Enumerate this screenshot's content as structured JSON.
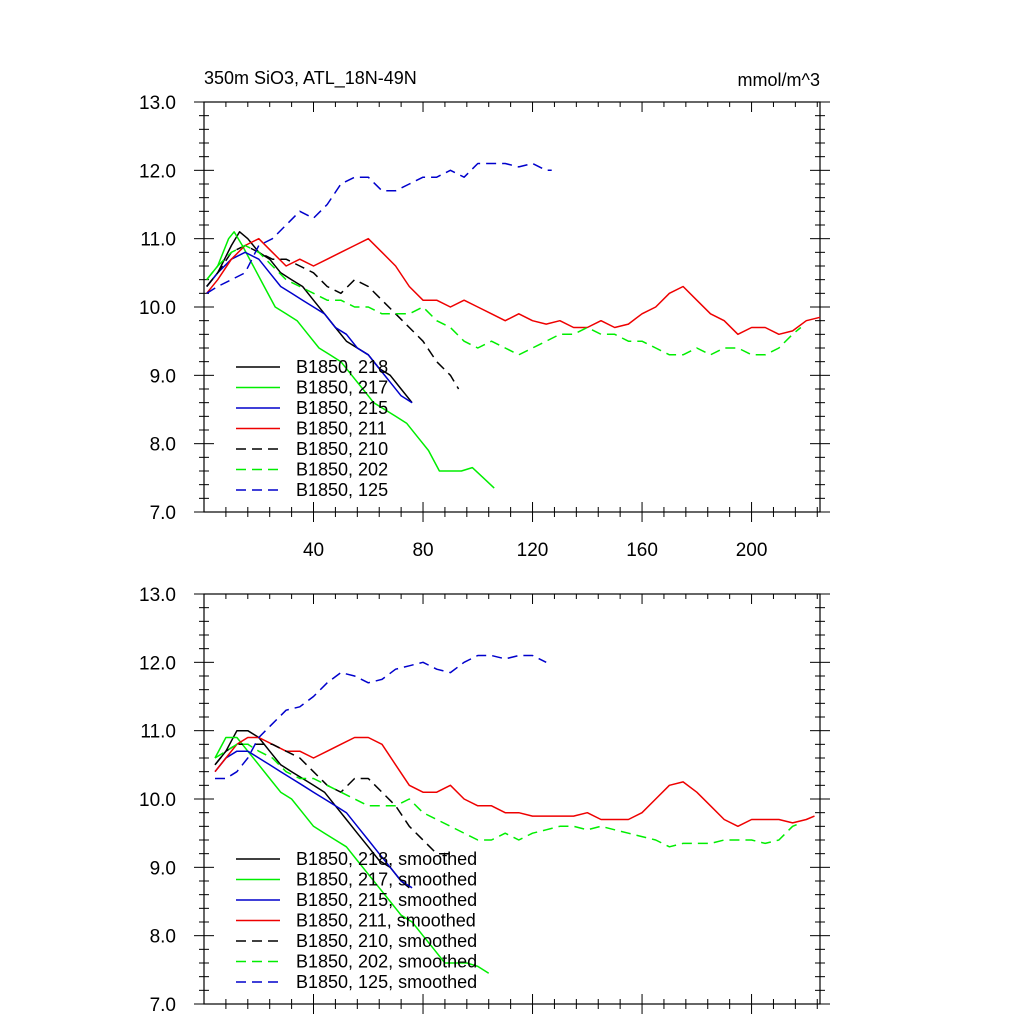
{
  "chart_data": [
    {
      "type": "line",
      "title": "350m SiO3, ATL_18N-49N",
      "units": "mmol/m^3",
      "xlim": [
        0,
        225
      ],
      "ylim": [
        7.0,
        13.0
      ],
      "xticks": [
        "40",
        "80",
        "120",
        "160",
        "200"
      ],
      "yticks": [
        "7.0",
        "8.0",
        "9.0",
        "10.0",
        "11.0",
        "12.0",
        "13.0"
      ],
      "legend_position": "bottom-left",
      "series": [
        {
          "name": "B1850, 218",
          "color": "#000000",
          "dash": "solid",
          "x": [
            1,
            5,
            10,
            13,
            16,
            20,
            24,
            28,
            32,
            36,
            40,
            44,
            48,
            52,
            56,
            60,
            64,
            68,
            72,
            76
          ],
          "y": [
            10.3,
            10.5,
            10.9,
            11.1,
            11.0,
            10.8,
            10.7,
            10.5,
            10.4,
            10.3,
            10.1,
            9.9,
            9.7,
            9.5,
            9.4,
            9.3,
            9.1,
            9.0,
            8.8,
            8.6
          ]
        },
        {
          "name": "B1850, 217",
          "color": "#00ee00",
          "dash": "solid",
          "x": [
            1,
            5,
            9,
            11,
            14,
            18,
            22,
            26,
            30,
            34,
            38,
            42,
            46,
            50,
            54,
            58,
            62,
            66,
            70,
            74,
            78,
            82,
            86,
            90,
            94,
            98,
            102,
            106
          ],
          "y": [
            10.4,
            10.6,
            11.0,
            11.1,
            10.9,
            10.6,
            10.3,
            10.0,
            9.9,
            9.8,
            9.6,
            9.4,
            9.3,
            9.2,
            9.0,
            8.8,
            8.6,
            8.5,
            8.4,
            8.3,
            8.1,
            7.9,
            7.6,
            7.6,
            7.6,
            7.65,
            7.5,
            7.35
          ]
        },
        {
          "name": "B1850, 215",
          "color": "#0000cc",
          "dash": "solid",
          "x": [
            1,
            5,
            10,
            15,
            20,
            24,
            28,
            32,
            36,
            40,
            44,
            48,
            52,
            56,
            60,
            64,
            68,
            72,
            76
          ],
          "y": [
            10.3,
            10.5,
            10.7,
            10.8,
            10.7,
            10.5,
            10.3,
            10.2,
            10.1,
            10.0,
            9.9,
            9.7,
            9.6,
            9.4,
            9.3,
            9.1,
            8.9,
            8.7,
            8.6
          ]
        },
        {
          "name": "B1850, 211",
          "color": "#ee0000",
          "dash": "solid",
          "x": [
            1,
            5,
            10,
            15,
            20,
            25,
            30,
            35,
            40,
            45,
            50,
            55,
            60,
            65,
            70,
            75,
            80,
            85,
            90,
            95,
            100,
            105,
            110,
            115,
            120,
            125,
            130,
            135,
            140,
            145,
            150,
            155,
            160,
            165,
            170,
            175,
            180,
            185,
            190,
            195,
            200,
            205,
            210,
            215,
            220,
            225
          ],
          "y": [
            10.2,
            10.4,
            10.7,
            10.9,
            11.0,
            10.8,
            10.6,
            10.7,
            10.6,
            10.7,
            10.8,
            10.9,
            11.0,
            10.8,
            10.6,
            10.3,
            10.1,
            10.1,
            10.0,
            10.1,
            10.0,
            9.9,
            9.8,
            9.9,
            9.8,
            9.75,
            9.8,
            9.7,
            9.7,
            9.8,
            9.7,
            9.75,
            9.9,
            10.0,
            10.2,
            10.3,
            10.1,
            9.9,
            9.8,
            9.6,
            9.7,
            9.7,
            9.6,
            9.65,
            9.8,
            9.85
          ]
        },
        {
          "name": "B1850, 210",
          "color": "#000000",
          "dash": "dashed",
          "x": [
            1,
            5,
            10,
            15,
            20,
            25,
            30,
            35,
            40,
            45,
            50,
            55,
            60,
            65,
            70,
            75,
            80,
            85,
            90,
            93
          ],
          "y": [
            10.3,
            10.5,
            10.8,
            10.9,
            10.8,
            10.7,
            10.7,
            10.6,
            10.5,
            10.3,
            10.2,
            10.4,
            10.3,
            10.1,
            9.9,
            9.7,
            9.5,
            9.2,
            9.0,
            8.8
          ]
        },
        {
          "name": "B1850, 202",
          "color": "#00ee00",
          "dash": "dashed",
          "x": [
            1,
            5,
            10,
            15,
            20,
            25,
            30,
            35,
            40,
            45,
            50,
            55,
            60,
            65,
            70,
            75,
            80,
            85,
            90,
            95,
            100,
            105,
            110,
            115,
            120,
            125,
            130,
            135,
            140,
            145,
            150,
            155,
            160,
            165,
            170,
            175,
            180,
            185,
            190,
            195,
            200,
            205,
            210,
            215,
            218
          ],
          "y": [
            10.4,
            10.6,
            10.8,
            10.9,
            10.8,
            10.6,
            10.4,
            10.3,
            10.2,
            10.1,
            10.1,
            10.0,
            10.0,
            9.9,
            9.9,
            9.9,
            10.0,
            9.8,
            9.7,
            9.5,
            9.4,
            9.5,
            9.4,
            9.3,
            9.4,
            9.5,
            9.6,
            9.6,
            9.7,
            9.6,
            9.6,
            9.5,
            9.5,
            9.4,
            9.3,
            9.3,
            9.4,
            9.3,
            9.4,
            9.4,
            9.3,
            9.3,
            9.4,
            9.6,
            9.7
          ]
        },
        {
          "name": "B1850, 125",
          "color": "#0000cc",
          "dash": "dashed",
          "x": [
            1,
            5,
            10,
            15,
            20,
            25,
            30,
            35,
            40,
            45,
            50,
            55,
            60,
            65,
            70,
            75,
            80,
            85,
            90,
            95,
            100,
            105,
            110,
            115,
            120,
            125,
            127
          ],
          "y": [
            10.2,
            10.3,
            10.4,
            10.5,
            10.9,
            11.0,
            11.2,
            11.4,
            11.3,
            11.5,
            11.8,
            11.9,
            11.9,
            11.7,
            11.7,
            11.8,
            11.9,
            11.9,
            12.0,
            11.9,
            12.1,
            12.1,
            12.1,
            12.05,
            12.1,
            12.0,
            12.0
          ]
        }
      ]
    },
    {
      "type": "line",
      "title": "",
      "xlim": [
        0,
        225
      ],
      "ylim": [
        7.0,
        13.0
      ],
      "xticks": [],
      "yticks": [
        "7.0",
        "8.0",
        "9.0",
        "10.0",
        "11.0",
        "12.0",
        "13.0"
      ],
      "legend_position": "bottom-left",
      "series": [
        {
          "name": "B1850, 218, smoothed",
          "color": "#000000",
          "dash": "solid",
          "x": [
            4,
            8,
            12,
            16,
            20,
            24,
            28,
            32,
            36,
            40,
            44,
            48,
            52,
            56,
            60,
            64,
            68,
            72,
            75
          ],
          "y": [
            10.5,
            10.7,
            11.0,
            11.0,
            10.9,
            10.7,
            10.5,
            10.4,
            10.3,
            10.2,
            10.1,
            9.9,
            9.7,
            9.5,
            9.3,
            9.1,
            9.0,
            8.8,
            8.7
          ]
        },
        {
          "name": "B1850, 217, smoothed",
          "color": "#00ee00",
          "dash": "solid",
          "x": [
            4,
            8,
            12,
            16,
            20,
            24,
            28,
            32,
            36,
            40,
            44,
            48,
            52,
            56,
            60,
            64,
            68,
            72,
            76,
            80,
            84,
            88,
            92,
            96,
            100,
            104
          ],
          "y": [
            10.6,
            10.9,
            10.9,
            10.7,
            10.5,
            10.3,
            10.1,
            10.0,
            9.8,
            9.6,
            9.5,
            9.4,
            9.3,
            9.1,
            8.9,
            8.7,
            8.5,
            8.3,
            8.2,
            8.0,
            7.8,
            7.6,
            7.6,
            7.6,
            7.55,
            7.45
          ]
        },
        {
          "name": "B1850, 215, smoothed",
          "color": "#0000cc",
          "dash": "solid",
          "x": [
            4,
            8,
            12,
            16,
            20,
            24,
            28,
            32,
            36,
            40,
            44,
            48,
            52,
            56,
            60,
            64,
            68,
            72,
            76
          ],
          "y": [
            10.4,
            10.6,
            10.7,
            10.7,
            10.6,
            10.5,
            10.4,
            10.3,
            10.2,
            10.1,
            10.0,
            9.9,
            9.8,
            9.6,
            9.4,
            9.2,
            9.0,
            8.8,
            8.7
          ]
        },
        {
          "name": "B1850, 211, smoothed",
          "color": "#ee0000",
          "dash": "solid",
          "x": [
            4,
            8,
            12,
            16,
            20,
            25,
            30,
            35,
            40,
            45,
            50,
            55,
            60,
            65,
            70,
            75,
            80,
            85,
            90,
            95,
            100,
            105,
            110,
            115,
            120,
            125,
            130,
            135,
            140,
            145,
            150,
            155,
            160,
            165,
            170,
            175,
            180,
            185,
            190,
            195,
            200,
            205,
            210,
            215,
            220,
            223
          ],
          "y": [
            10.4,
            10.6,
            10.8,
            10.9,
            10.9,
            10.8,
            10.7,
            10.7,
            10.6,
            10.7,
            10.8,
            10.9,
            10.9,
            10.8,
            10.5,
            10.2,
            10.1,
            10.1,
            10.2,
            10.0,
            9.9,
            9.9,
            9.8,
            9.8,
            9.75,
            9.75,
            9.75,
            9.75,
            9.8,
            9.7,
            9.7,
            9.7,
            9.8,
            10.0,
            10.2,
            10.25,
            10.1,
            9.9,
            9.7,
            9.6,
            9.7,
            9.7,
            9.7,
            9.65,
            9.7,
            9.75
          ]
        },
        {
          "name": "B1850, 210, smoothed",
          "color": "#000000",
          "dash": "dashed",
          "x": [
            4,
            8,
            12,
            16,
            20,
            25,
            30,
            35,
            40,
            45,
            50,
            55,
            60,
            65,
            70,
            75,
            80,
            85,
            90
          ],
          "y": [
            10.5,
            10.7,
            10.8,
            10.8,
            10.8,
            10.8,
            10.7,
            10.6,
            10.4,
            10.2,
            10.1,
            10.3,
            10.3,
            10.1,
            9.9,
            9.6,
            9.4,
            9.2,
            9.2
          ]
        },
        {
          "name": "B1850, 202, smoothed",
          "color": "#00ee00",
          "dash": "dashed",
          "x": [
            4,
            8,
            12,
            16,
            20,
            25,
            30,
            35,
            40,
            45,
            50,
            55,
            60,
            65,
            70,
            75,
            80,
            85,
            90,
            95,
            100,
            105,
            110,
            115,
            120,
            125,
            130,
            135,
            140,
            145,
            150,
            155,
            160,
            165,
            170,
            175,
            180,
            185,
            190,
            195,
            200,
            205,
            210,
            215,
            218
          ],
          "y": [
            10.6,
            10.7,
            10.8,
            10.8,
            10.7,
            10.6,
            10.4,
            10.3,
            10.3,
            10.2,
            10.1,
            10.0,
            9.9,
            9.9,
            9.9,
            10.0,
            9.8,
            9.7,
            9.6,
            9.5,
            9.4,
            9.4,
            9.5,
            9.4,
            9.5,
            9.55,
            9.6,
            9.6,
            9.55,
            9.6,
            9.55,
            9.5,
            9.45,
            9.4,
            9.3,
            9.35,
            9.35,
            9.35,
            9.4,
            9.4,
            9.4,
            9.35,
            9.4,
            9.6,
            9.65
          ]
        },
        {
          "name": "B1850, 125, smoothed",
          "color": "#0000cc",
          "dash": "dashed",
          "x": [
            4,
            8,
            12,
            16,
            20,
            25,
            30,
            35,
            40,
            45,
            50,
            55,
            60,
            65,
            70,
            75,
            80,
            85,
            90,
            95,
            100,
            105,
            110,
            115,
            120,
            125
          ],
          "y": [
            10.3,
            10.3,
            10.4,
            10.6,
            10.9,
            11.1,
            11.3,
            11.35,
            11.5,
            11.7,
            11.85,
            11.8,
            11.7,
            11.75,
            11.9,
            11.95,
            12.0,
            11.9,
            11.85,
            12.0,
            12.1,
            12.1,
            12.05,
            12.1,
            12.1,
            12.0
          ]
        }
      ]
    }
  ]
}
